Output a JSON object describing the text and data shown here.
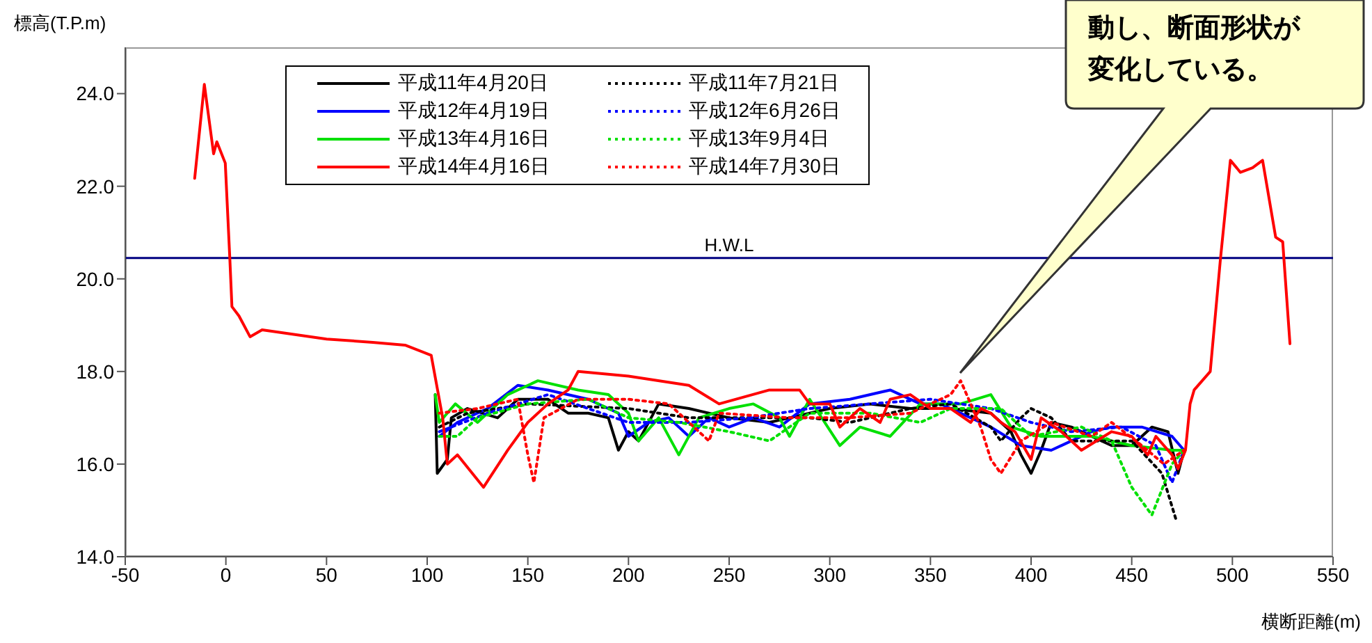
{
  "chart_data": {
    "type": "line",
    "ylabel": "標高(T.P.m)",
    "xlabel": "横断距離(m)",
    "xlim": [
      -50,
      550
    ],
    "ylim": [
      14,
      25
    ],
    "xticks": [
      -50,
      0,
      50,
      100,
      150,
      200,
      250,
      300,
      350,
      400,
      450,
      500,
      550
    ],
    "yticks": [
      {
        "value": 14,
        "label": "14.0"
      },
      {
        "value": 16,
        "label": "16.0"
      },
      {
        "value": 18,
        "label": "18.0"
      },
      {
        "value": 20,
        "label": "20.0"
      },
      {
        "value": 22,
        "label": "22.0"
      },
      {
        "value": 24,
        "label": "24.0"
      }
    ],
    "legend": "top",
    "marker": "none",
    "ref_lines": [
      {
        "axis": "y",
        "value": 20.45,
        "label": "H.W.L",
        "color": "#000080"
      }
    ],
    "annotations": [
      "動し、断面形状が変化している。"
    ],
    "series": [
      {
        "name": "平成11年4月20日",
        "color": "#000000",
        "line_style": "solid",
        "x": [
          104,
          105,
          110,
          112,
          120,
          135,
          145,
          160,
          170,
          180,
          190,
          195,
          200,
          205,
          215,
          230,
          250,
          270,
          280,
          300,
          320,
          340,
          360,
          380,
          390,
          395,
          400,
          405,
          410,
          420,
          430,
          440,
          450,
          460,
          468,
          473,
          476
        ],
        "values": [
          17.5,
          15.8,
          16.1,
          17.0,
          17.2,
          17.0,
          17.4,
          17.4,
          17.1,
          17.1,
          17.0,
          16.3,
          16.7,
          16.5,
          17.3,
          17.2,
          17.0,
          16.9,
          17.0,
          17.2,
          17.3,
          17.2,
          17.2,
          17.1,
          16.7,
          16.2,
          15.8,
          16.3,
          16.9,
          16.8,
          16.6,
          16.4,
          16.4,
          16.8,
          16.7,
          15.8,
          16.3
        ]
      },
      {
        "name": "平成12年4月19日",
        "color": "#0000ff",
        "line_style": "solid",
        "x": [
          106,
          115,
          130,
          145,
          160,
          180,
          195,
          200,
          210,
          220,
          230,
          240,
          250,
          262,
          275,
          290,
          310,
          330,
          345,
          355,
          370,
          380,
          395,
          410,
          420,
          430,
          440,
          455,
          470,
          476
        ],
        "values": [
          16.6,
          16.9,
          17.2,
          17.7,
          17.6,
          17.4,
          17.1,
          16.6,
          16.9,
          17.0,
          16.6,
          17.0,
          16.8,
          17.0,
          16.8,
          17.3,
          17.4,
          17.6,
          17.3,
          17.3,
          17.0,
          16.8,
          16.4,
          16.3,
          16.5,
          16.7,
          16.8,
          16.8,
          16.6,
          16.3
        ]
      },
      {
        "name": "平成13年4月16日",
        "color": "#00e000",
        "line_style": "solid",
        "x": [
          104,
          106,
          114,
          125,
          140,
          155,
          175,
          190,
          200,
          205,
          215,
          225,
          235,
          250,
          262,
          275,
          280,
          290,
          305,
          315,
          330,
          345,
          365,
          380,
          390,
          405,
          430,
          450,
          470,
          476
        ],
        "values": [
          17.5,
          16.9,
          17.3,
          16.9,
          17.5,
          17.8,
          17.6,
          17.5,
          17.1,
          16.5,
          17.0,
          16.2,
          17.0,
          17.2,
          17.3,
          17.0,
          16.6,
          17.4,
          16.4,
          16.8,
          16.6,
          17.3,
          17.3,
          17.5,
          16.8,
          16.6,
          16.6,
          16.4,
          16.3,
          16.3
        ]
      },
      {
        "name": "平成11年7月21日",
        "color": "#000000",
        "line_style": "dotted",
        "x": [
          106,
          120,
          150,
          200,
          230,
          260,
          290,
          310,
          340,
          360,
          380,
          385,
          395,
          400,
          410,
          420,
          450,
          465,
          472
        ],
        "values": [
          16.8,
          17.1,
          17.3,
          17.2,
          17.0,
          17.0,
          17.0,
          16.9,
          17.2,
          17.3,
          16.8,
          16.5,
          17.0,
          17.2,
          17.0,
          16.5,
          16.5,
          15.8,
          14.8
        ]
      },
      {
        "name": "平成12年6月26日",
        "color": "#0000ff",
        "line_style": "dotted",
        "x": [
          106,
          130,
          160,
          200,
          230,
          260,
          290,
          320,
          350,
          380,
          400,
          420,
          445,
          462,
          470,
          476
        ],
        "values": [
          16.7,
          17.1,
          17.5,
          16.9,
          16.9,
          17.0,
          17.2,
          17.3,
          17.4,
          17.2,
          16.9,
          16.7,
          16.8,
          16.4,
          15.6,
          16.3
        ]
      },
      {
        "name": "平成13年9月4日",
        "color": "#00e000",
        "line_style": "dotted",
        "x": [
          106,
          115,
          125,
          150,
          180,
          200,
          225,
          250,
          270,
          290,
          320,
          345,
          360,
          385,
          400,
          425,
          440,
          450,
          460,
          470,
          476
        ],
        "values": [
          16.6,
          16.6,
          17.0,
          17.3,
          17.4,
          17.0,
          16.9,
          16.7,
          16.5,
          17.1,
          17.1,
          16.9,
          17.2,
          17.2,
          16.6,
          16.8,
          16.5,
          15.5,
          14.9,
          16.0,
          16.3
        ]
      },
      {
        "name": "平成14年7月30日",
        "color": "#ff0000",
        "line_style": "dotted",
        "x": [
          106,
          125,
          145,
          150,
          153,
          158,
          175,
          200,
          220,
          240,
          245,
          280,
          310,
          340,
          360,
          365,
          375,
          380,
          385,
          395,
          410,
          430,
          440,
          455,
          466,
          476
        ],
        "values": [
          17.1,
          17.2,
          17.4,
          16.2,
          15.6,
          17.0,
          17.4,
          17.4,
          17.3,
          16.5,
          17.1,
          17.0,
          17.0,
          17.1,
          17.5,
          17.8,
          16.8,
          16.1,
          15.8,
          16.5,
          16.9,
          16.6,
          16.9,
          16.4,
          16.0,
          16.3
        ]
      },
      {
        "name": "平成14年4月16日",
        "color": "#ff0000",
        "line_style": "solid",
        "x": [
          -15.5,
          -10.7,
          -6.1,
          -4.5,
          -0.3,
          2,
          3,
          6.5,
          12,
          18,
          50,
          73,
          89,
          102,
          107.7,
          110,
          115,
          128,
          140,
          150,
          160,
          170,
          175,
          200,
          230,
          245,
          270,
          285,
          290,
          300,
          305,
          315,
          325,
          330,
          340,
          350,
          360,
          370,
          375,
          380,
          385,
          392,
          400,
          405,
          415,
          425,
          440,
          450,
          458,
          462,
          470,
          473,
          476.7,
          479,
          481,
          489,
          494,
          499,
          504,
          510,
          515,
          521.5,
          525,
          528.6
        ],
        "values": [
          22.17,
          24.2,
          22.7,
          22.96,
          22.5,
          20.4,
          19.4,
          19.2,
          18.75,
          18.9,
          18.7,
          18.63,
          18.57,
          18.35,
          17.0,
          16.0,
          16.2,
          15.5,
          16.3,
          16.9,
          17.3,
          17.6,
          18.0,
          17.9,
          17.7,
          17.3,
          17.6,
          17.6,
          17.3,
          17.3,
          16.8,
          17.2,
          16.9,
          17.4,
          17.5,
          17.2,
          17.2,
          16.9,
          17.2,
          17.1,
          16.9,
          16.7,
          16.1,
          17.0,
          16.7,
          16.3,
          16.7,
          16.6,
          16.2,
          16.6,
          16.2,
          15.9,
          16.3,
          17.3,
          17.6,
          18.0,
          20.4,
          22.56,
          22.3,
          22.4,
          22.56,
          20.9,
          20.8,
          18.6
        ]
      }
    ]
  }
}
